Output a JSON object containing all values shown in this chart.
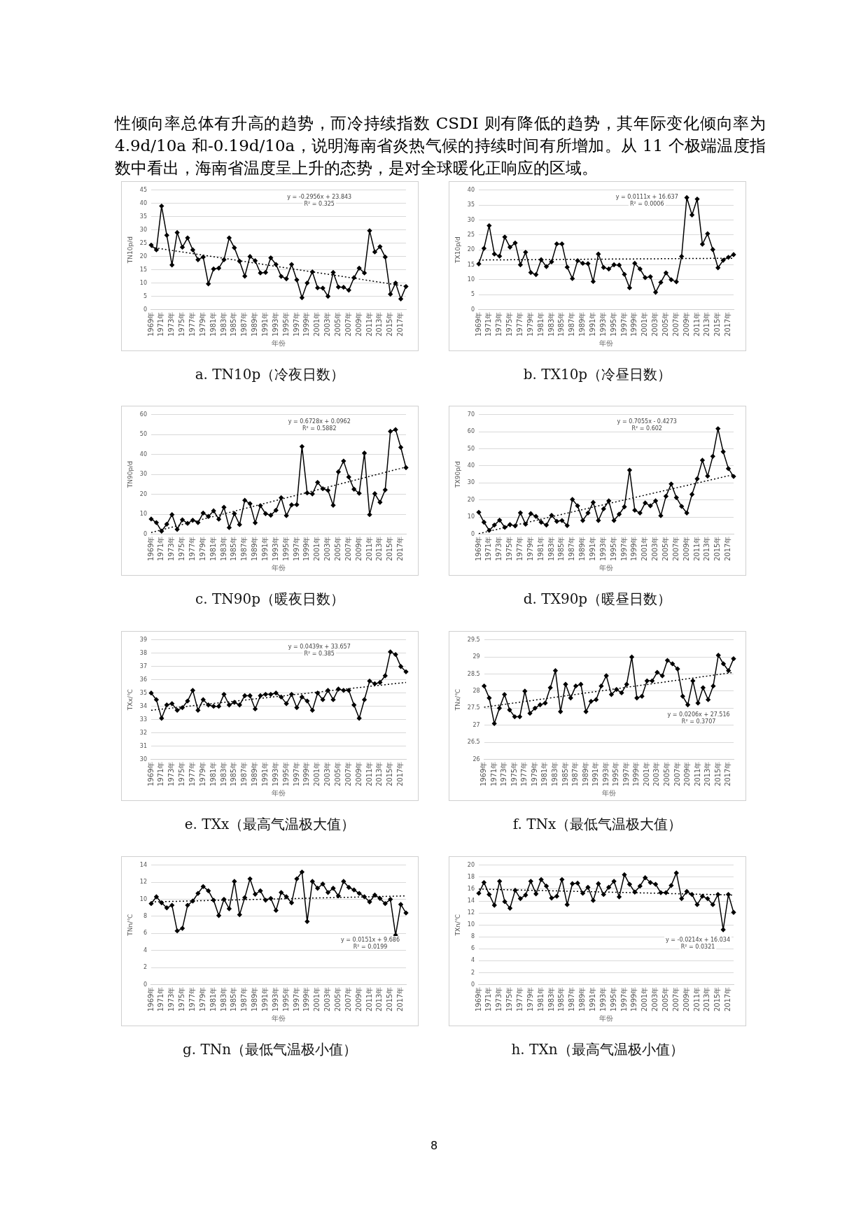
{
  "chart_data": [
    {
      "type": "line",
      "title": "a. TN10p（冷夜日数）",
      "xlabel": "年份",
      "ylabel": "TN10p/d",
      "categories": [
        "1969年",
        null,
        "1971年",
        null,
        "1973年",
        null,
        "1975年",
        null,
        "1977年",
        null,
        "1979年",
        null,
        "1981年",
        null,
        "1983年",
        null,
        "1985年",
        null,
        "1987年",
        null,
        "1989年",
        null,
        "1991年",
        null,
        "1993年",
        null,
        "1995年",
        null,
        "1997年",
        null,
        "1999年",
        null,
        "2001年",
        null,
        "2003年",
        null,
        "2005年",
        null,
        "2007年",
        null,
        "2009年",
        null,
        "2011年",
        null,
        "2013年",
        null,
        "2015年",
        null,
        "2017年",
        null
      ],
      "ylim": [
        0,
        45
      ],
      "yticks": [
        0,
        5,
        10,
        15,
        20,
        25,
        30,
        35,
        40,
        45
      ],
      "grid": "y",
      "legend": false,
      "marker": "diamond",
      "line_style": "solid",
      "series": [
        {
          "color": "#000000",
          "values": [
            24.3,
            22.5,
            39,
            28,
            16.8,
            29,
            23.5,
            27,
            22.5,
            18.8,
            19.8,
            9.7,
            15.3,
            15.6,
            18.8,
            27,
            23.3,
            18.2,
            12.6,
            20,
            18.4,
            13.8,
            14,
            19.5,
            17,
            12.5,
            11.6,
            17,
            11.2,
            4.5,
            10,
            14.2,
            8.2,
            8.1,
            5,
            14,
            8.5,
            8.4,
            7.3,
            12,
            15.6,
            13.8,
            29.7,
            21.7,
            23.7,
            19.8,
            5.8,
            10,
            4,
            8.7
          ]
        },
        {
          "color": "#000000",
          "marker": "none",
          "line_style": "dotted",
          "values": [
            23.5,
            null,
            null,
            null,
            null,
            null,
            null,
            null,
            null,
            null,
            null,
            null,
            null,
            null,
            null,
            null,
            null,
            null,
            null,
            null,
            null,
            null,
            null,
            null,
            null,
            null,
            null,
            null,
            null,
            null,
            null,
            null,
            null,
            null,
            null,
            null,
            null,
            null,
            null,
            null,
            null,
            null,
            null,
            null,
            null,
            null,
            null,
            null,
            null,
            8.8
          ]
        }
      ],
      "annotations": [
        "y = -0.2956x + 23.843",
        "R² = 0.325",
        "性倾向率总体有升高的趋势，而冷持续指数 CSDI 则有降低的趋势，其年际变化倾向率为 4.9d/10a 和-0.19d/10a，说明海南省炎热气候的持续时间有所增加。从 11 个极端温度指数中看出，海南省温度呈上升的态势，是对全球暖化正响应的区域。"
      ]
    },
    {
      "type": "line",
      "title": "b. TX10p（冷昼日数）",
      "xlabel": "年份",
      "ylabel": "TX10p/d",
      "categories": [
        "1969年",
        null,
        "1971年",
        null,
        "1973年",
        null,
        "1975年",
        null,
        "1977年",
        null,
        "1979年",
        null,
        "1981年",
        null,
        "1983年",
        null,
        "1985年",
        null,
        "1987年",
        null,
        "1989年",
        null,
        "1991年",
        null,
        "1993年",
        null,
        "1995年",
        null,
        "1997年",
        null,
        "1999年",
        null,
        "2001年",
        null,
        "2003年",
        null,
        "2005年",
        null,
        "2007年",
        null,
        "2009年",
        null,
        "2011年",
        null,
        "2013年",
        null,
        "2015年",
        null,
        "2017年",
        null
      ],
      "ylim": [
        0,
        40
      ],
      "yticks": [
        0,
        5,
        10,
        15,
        20,
        25,
        30,
        35,
        40
      ],
      "grid": "y",
      "legend": false,
      "marker": "diamond",
      "line_style": "solid",
      "series": [
        {
          "color": "#000000",
          "values": [
            15.3,
            20.5,
            28.1,
            18.6,
            17.9,
            24.3,
            20.9,
            22.3,
            15,
            19.2,
            12.4,
            11.7,
            16.7,
            14.4,
            16,
            22,
            22,
            14.2,
            10.4,
            16.4,
            15.5,
            15.4,
            9.4,
            18.6,
            14.1,
            13.6,
            15,
            14.9,
            11.8,
            7.3,
            15.5,
            13.6,
            10.7,
            11,
            5.8,
            9.1,
            12.3,
            10,
            9.3,
            17.8,
            37.5,
            31.7,
            37,
            21.9,
            25.4,
            20.1,
            14,
            16.5,
            17.5,
            18.4
          ]
        },
        {
          "color": "#000000",
          "marker": "none",
          "line_style": "dotted",
          "values": [
            16.6,
            null,
            null,
            null,
            null,
            null,
            null,
            null,
            null,
            null,
            null,
            null,
            null,
            null,
            null,
            null,
            null,
            null,
            null,
            null,
            null,
            null,
            null,
            null,
            null,
            null,
            null,
            null,
            null,
            null,
            null,
            null,
            null,
            null,
            null,
            null,
            null,
            null,
            null,
            null,
            null,
            null,
            null,
            null,
            null,
            null,
            null,
            null,
            null,
            17.2
          ]
        }
      ],
      "annotations": [
        "y = 0.0111x + 16.637",
        "R² = 0.0006"
      ]
    },
    {
      "type": "line",
      "title": "c. TN90p（暖夜日数）",
      "xlabel": "年份",
      "ylabel": "TN90p/d",
      "categories": [
        "1969年",
        null,
        "1971年",
        null,
        "1973年",
        null,
        "1975年",
        null,
        "1977年",
        null,
        "1979年",
        null,
        "1981年",
        null,
        "1983年",
        null,
        "1985年",
        null,
        "1987年",
        null,
        "1989年",
        null,
        "1991年",
        null,
        "1993年",
        null,
        "1995年",
        null,
        "1997年",
        null,
        "1999年",
        null,
        "2001年",
        null,
        "2003年",
        null,
        "2005年",
        null,
        "2007年",
        null,
        "2009年",
        null,
        "2011年",
        null,
        "2013年",
        null,
        "2015年",
        null,
        "2017年",
        null
      ],
      "ylim": [
        0,
        60
      ],
      "yticks": [
        0,
        10,
        20,
        30,
        40,
        50,
        60
      ],
      "grid": "y",
      "legend": false,
      "marker": "diamond",
      "line_style": "solid",
      "series": [
        {
          "color": "#000000",
          "values": [
            7.6,
            5.8,
            1.5,
            5,
            9.8,
            2.4,
            7.2,
            5.4,
            7,
            5.8,
            10.6,
            8.9,
            11.7,
            7.5,
            13.5,
            3.3,
            10.3,
            4.8,
            17,
            15.3,
            5.7,
            14.3,
            10.3,
            9.5,
            12,
            18.3,
            9.3,
            14.7,
            14.8,
            44,
            20.7,
            20.2,
            26,
            22.8,
            22,
            14.5,
            31.3,
            36.7,
            28.7,
            22.6,
            20.5,
            40.7,
            9.8,
            20.3,
            16,
            22.2,
            51.6,
            52.5,
            43.6,
            33.4
          ]
        },
        {
          "color": "#000000",
          "marker": "none",
          "line_style": "dotted",
          "values": [
            0.8,
            null,
            null,
            null,
            null,
            null,
            null,
            null,
            null,
            null,
            null,
            null,
            null,
            null,
            null,
            null,
            null,
            null,
            null,
            null,
            null,
            null,
            null,
            null,
            null,
            null,
            null,
            null,
            null,
            null,
            null,
            null,
            null,
            null,
            null,
            null,
            null,
            null,
            null,
            null,
            null,
            null,
            null,
            null,
            null,
            null,
            null,
            null,
            null,
            33.7
          ]
        }
      ],
      "annotations": [
        "y = 0.6728x + 0.0962",
        "R² = 0.5882"
      ]
    },
    {
      "type": "line",
      "title": "d. TX90p（暖昼日数）",
      "xlabel": "年份",
      "ylabel": "TX90p/d",
      "categories": [
        "1969年",
        null,
        "1971年",
        null,
        "1973年",
        null,
        "1975年",
        null,
        "1977年",
        null,
        "1979年",
        null,
        "1981年",
        null,
        "1983年",
        null,
        "1985年",
        null,
        "1987年",
        null,
        "1989年",
        null,
        "1991年",
        null,
        "1993年",
        null,
        "1995年",
        null,
        "1997年",
        null,
        "1999年",
        null,
        "2001年",
        null,
        "2003年",
        null,
        "2005年",
        null,
        "2007年",
        null,
        "2009年",
        null,
        "2011年",
        null,
        "2013年",
        null,
        "2015年",
        null,
        "2017年",
        null
      ],
      "ylim": [
        0,
        70
      ],
      "yticks": [
        0,
        10,
        20,
        30,
        40,
        50,
        60,
        70
      ],
      "grid": "y",
      "legend": false,
      "marker": "diamond",
      "line_style": "solid",
      "series": [
        {
          "color": "#000000",
          "values": [
            12.8,
            7,
            2.2,
            5.3,
            8.2,
            4,
            5.6,
            4.8,
            12.5,
            5.8,
            12,
            10.4,
            7,
            5.3,
            11,
            7.5,
            8,
            5,
            20.3,
            16.6,
            8,
            12.4,
            18.6,
            8,
            14.8,
            19.5,
            8,
            11.7,
            16,
            37.5,
            14,
            12.4,
            18.3,
            16.6,
            19.5,
            10.8,
            22.2,
            29.4,
            21.4,
            16.3,
            12.4,
            23.3,
            32.4,
            43.3,
            34,
            45.6,
            61.8,
            48.3,
            38.4,
            33.8
          ]
        },
        {
          "color": "#000000",
          "marker": "none",
          "line_style": "dotted",
          "values": [
            0.3,
            null,
            null,
            null,
            null,
            null,
            null,
            null,
            null,
            null,
            null,
            null,
            null,
            null,
            null,
            null,
            null,
            null,
            null,
            null,
            null,
            null,
            null,
            null,
            null,
            null,
            null,
            null,
            null,
            null,
            null,
            null,
            null,
            null,
            null,
            null,
            null,
            null,
            null,
            null,
            null,
            null,
            null,
            null,
            null,
            null,
            null,
            null,
            null,
            34.9
          ]
        }
      ],
      "annotations": [
        "y = 0.7055x - 0.4273",
        "R² = 0.602"
      ]
    },
    {
      "type": "line",
      "title": "e. TXx（最高气温极大值）",
      "xlabel": "年份",
      "ylabel": "TXx/℃",
      "categories": [
        "1969年",
        null,
        "1971年",
        null,
        "1973年",
        null,
        "1975年",
        null,
        "1977年",
        null,
        "1979年",
        null,
        "1981年",
        null,
        "1983年",
        null,
        "1985年",
        null,
        "1987年",
        null,
        "1989年",
        null,
        "1991年",
        null,
        "1993年",
        null,
        "1995年",
        null,
        "1997年",
        null,
        "1999年",
        null,
        "2001年",
        null,
        "2003年",
        null,
        "2005年",
        null,
        "2007年",
        null,
        "2009年",
        null,
        "2011年",
        null,
        "2013年",
        null,
        "2015年",
        null,
        "2017年",
        null
      ],
      "ylim": [
        30,
        39
      ],
      "yticks": [
        30,
        31,
        32,
        33,
        34,
        35,
        36,
        37,
        38,
        39
      ],
      "grid": "y",
      "legend": false,
      "marker": "diamond",
      "line_style": "solid",
      "series": [
        {
          "color": "#000000",
          "values": [
            35,
            34.5,
            33.1,
            34.1,
            34.2,
            33.7,
            33.9,
            34.4,
            35.2,
            33.7,
            34.5,
            34.1,
            34,
            34,
            34.9,
            34.1,
            34.3,
            34.1,
            34.8,
            34.8,
            33.8,
            34.8,
            34.9,
            34.9,
            35,
            34.7,
            34.2,
            34.9,
            33.9,
            34.7,
            34.4,
            33.7,
            35,
            34.5,
            35.2,
            34.5,
            35.3,
            35.2,
            35.2,
            34.1,
            33.1,
            34.5,
            35.9,
            35.7,
            35.8,
            36.3,
            38.1,
            37.9,
            37,
            36.6
          ]
        },
        {
          "color": "#000000",
          "marker": "none",
          "line_style": "dotted",
          "values": [
            33.7,
            null,
            null,
            null,
            null,
            null,
            null,
            null,
            null,
            null,
            null,
            null,
            null,
            null,
            null,
            null,
            null,
            null,
            null,
            null,
            null,
            null,
            null,
            null,
            null,
            null,
            null,
            null,
            null,
            null,
            null,
            null,
            null,
            null,
            null,
            null,
            null,
            null,
            null,
            null,
            null,
            null,
            null,
            null,
            null,
            null,
            null,
            null,
            null,
            35.8
          ]
        }
      ],
      "annotations": [
        "y = 0.0439x + 33.657",
        "R² = 0.385"
      ]
    },
    {
      "type": "line",
      "title": "f. TNx（最低气温极大值）",
      "xlabel": "年份",
      "ylabel": "TNx/℃",
      "categories": [
        "1969年",
        null,
        "1971年",
        null,
        "1973年",
        null,
        "1975年",
        null,
        "1977年",
        null,
        "1979年",
        null,
        "1981年",
        null,
        "1983年",
        null,
        "1985年",
        null,
        "1987年",
        null,
        "1989年",
        null,
        "1991年",
        null,
        "1993年",
        null,
        "1995年",
        null,
        "1997年",
        null,
        "1999年",
        null,
        "2001年",
        null,
        "2003年",
        null,
        "2005年",
        null,
        "2007年",
        null,
        "2009年",
        null,
        "2011年",
        null,
        "2013年",
        null,
        "2015年",
        null,
        "2017年",
        null
      ],
      "ylim": [
        26,
        29.5
      ],
      "yticks": [
        26,
        26.5,
        27,
        27.5,
        28,
        28.5,
        29,
        29.5
      ],
      "grid": "y",
      "legend": false,
      "marker": "diamond",
      "line_style": "solid",
      "series": [
        {
          "color": "#000000",
          "values": [
            28.15,
            27.8,
            27.05,
            27.5,
            27.9,
            27.45,
            27.25,
            27.25,
            28,
            27.35,
            27.5,
            27.6,
            27.65,
            28.1,
            28.6,
            27.4,
            28.2,
            27.8,
            28.15,
            28.2,
            27.4,
            27.7,
            27.75,
            28.15,
            28.45,
            27.9,
            28.05,
            27.95,
            28.2,
            29,
            27.8,
            27.85,
            28.3,
            28.3,
            28.55,
            28.45,
            28.9,
            28.8,
            28.65,
            27.85,
            27.6,
            28.3,
            27.65,
            28.1,
            27.75,
            28.15,
            29.05,
            28.8,
            28.6,
            28.95
          ]
        },
        {
          "color": "#000000",
          "marker": "none",
          "line_style": "dotted",
          "values": [
            27.53,
            null,
            null,
            null,
            null,
            null,
            null,
            null,
            null,
            null,
            null,
            null,
            null,
            null,
            null,
            null,
            null,
            null,
            null,
            null,
            null,
            null,
            null,
            null,
            null,
            null,
            null,
            null,
            null,
            null,
            null,
            null,
            null,
            null,
            null,
            null,
            null,
            null,
            null,
            null,
            null,
            null,
            null,
            null,
            null,
            null,
            null,
            null,
            null,
            28.55
          ]
        }
      ],
      "annotations": [
        "y = 0.0206x + 27.516",
        "R² = 0.3707"
      ]
    },
    {
      "type": "line",
      "title": "g. TNn（最低气温极小值）",
      "xlabel": "年份",
      "ylabel": "TNn/℃",
      "categories": [
        "1969年",
        null,
        "1971年",
        null,
        "1973年",
        null,
        "1975年",
        null,
        "1977年",
        null,
        "1979年",
        null,
        "1981年",
        null,
        "1983年",
        null,
        "1985年",
        null,
        "1987年",
        null,
        "1989年",
        null,
        "1991年",
        null,
        "1993年",
        null,
        "1995年",
        null,
        "1997年",
        null,
        "1999年",
        null,
        "2001年",
        null,
        "2003年",
        null,
        "2005年",
        null,
        "2007年",
        null,
        "2009年",
        null,
        "2011年",
        null,
        "2013年",
        null,
        "2015年",
        null,
        "2017年",
        null
      ],
      "ylim": [
        0,
        14
      ],
      "yticks": [
        0,
        2,
        4,
        6,
        8,
        10,
        12,
        14
      ],
      "grid": "y",
      "legend": false,
      "marker": "diamond",
      "line_style": "solid",
      "series": [
        {
          "color": "#000000",
          "values": [
            9.5,
            10.3,
            9.6,
            9,
            9.3,
            6.3,
            6.6,
            9.3,
            9.8,
            10.7,
            11.5,
            11,
            9.9,
            8.1,
            10,
            8.9,
            12.1,
            8.2,
            10.2,
            12.4,
            10.6,
            11,
            9.9,
            10.1,
            8.7,
            10.8,
            10.3,
            9.6,
            12.4,
            13.2,
            7.4,
            12.1,
            11.3,
            11.8,
            10.8,
            11.3,
            10.4,
            12.1,
            11.4,
            11.1,
            10.7,
            10.3,
            9.7,
            10.5,
            10.1,
            9.5,
            10,
            5.8,
            9.4,
            8.4
          ]
        },
        {
          "color": "#000000",
          "marker": "none",
          "line_style": "dotted",
          "values": [
            9.7,
            null,
            null,
            null,
            null,
            null,
            null,
            null,
            null,
            null,
            null,
            null,
            null,
            null,
            null,
            null,
            null,
            null,
            null,
            null,
            null,
            null,
            null,
            null,
            null,
            null,
            null,
            null,
            null,
            null,
            null,
            null,
            null,
            null,
            null,
            null,
            null,
            null,
            null,
            null,
            null,
            null,
            null,
            null,
            null,
            null,
            null,
            null,
            null,
            10.4
          ]
        }
      ],
      "annotations": [
        "y = 0.0151x + 9.686",
        "R² = 0.0199"
      ]
    },
    {
      "type": "line",
      "title": "h. TXn（最高气温极小值）",
      "xlabel": "年份",
      "ylabel": "TXn/℃",
      "categories": [
        "1969年",
        null,
        "1971年",
        null,
        "1973年",
        null,
        "1975年",
        null,
        "1977年",
        null,
        "1979年",
        null,
        "1981年",
        null,
        "1983年",
        null,
        "1985年",
        null,
        "1987年",
        null,
        "1989年",
        null,
        "1991年",
        null,
        "1993年",
        null,
        "1995年",
        null,
        "1997年",
        null,
        "1999年",
        null,
        "2001年",
        null,
        "2003年",
        null,
        "2005年",
        null,
        "2007年",
        null,
        "2009年",
        null,
        "2011年",
        null,
        "2013年",
        null,
        "2015年",
        null,
        "2017年",
        null
      ],
      "ylim": [
        0,
        20
      ],
      "yticks": [
        0,
        2,
        4,
        6,
        8,
        10,
        12,
        14,
        16,
        18,
        20
      ],
      "grid": "y",
      "legend": false,
      "marker": "diamond",
      "line_style": "solid",
      "series": [
        {
          "color": "#000000",
          "values": [
            15.3,
            17.1,
            15.1,
            13.3,
            17.3,
            13.9,
            12.8,
            15.8,
            14.4,
            15,
            17.3,
            15.2,
            17.6,
            16.5,
            14.5,
            14.8,
            17.6,
            13.4,
            16.9,
            17,
            15.3,
            16.3,
            14.1,
            16.9,
            15.1,
            16.3,
            17.3,
            14.7,
            18.4,
            16.8,
            15.5,
            16.5,
            17.9,
            17.1,
            16.8,
            15.4,
            15.4,
            16.6,
            18.7,
            14.4,
            15.6,
            15.1,
            13.4,
            14.8,
            14.4,
            13.4,
            15.1,
            9.2,
            15.1,
            12.1
          ]
        },
        {
          "color": "#000000",
          "marker": "none",
          "line_style": "dotted",
          "values": [
            16,
            null,
            null,
            null,
            null,
            null,
            null,
            null,
            null,
            null,
            null,
            null,
            null,
            null,
            null,
            null,
            null,
            null,
            null,
            null,
            null,
            null,
            null,
            null,
            null,
            null,
            null,
            null,
            null,
            null,
            null,
            null,
            null,
            null,
            null,
            null,
            null,
            null,
            null,
            null,
            null,
            null,
            null,
            null,
            null,
            null,
            null,
            null,
            null,
            15
          ]
        }
      ],
      "annotations": [
        "y = -0.0214x + 16.034",
        "R² = 0.0321",
        "8"
      ]
    }
  ]
}
